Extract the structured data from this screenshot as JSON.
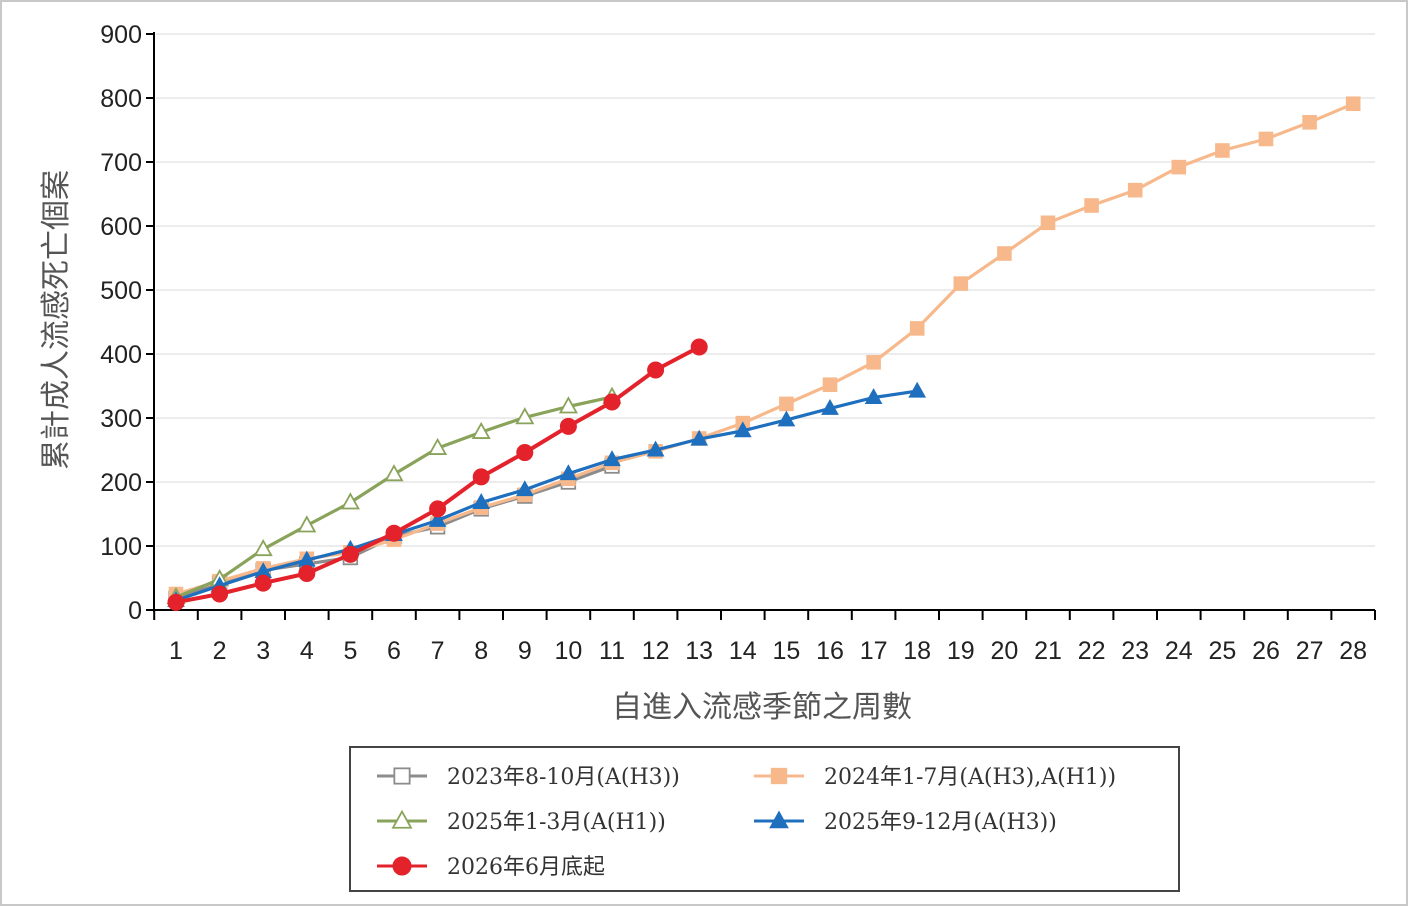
{
  "chart_data": {
    "type": "line",
    "xlabel": "自進入流感季節之周數",
    "ylabel": "累計成人流感死亡個案",
    "xlim": [
      1,
      28
    ],
    "ylim": [
      0,
      900
    ],
    "yticks": [
      "0",
      "100",
      "200",
      "300",
      "400",
      "500",
      "600",
      "700",
      "800",
      "900"
    ],
    "xticks": [
      "1",
      "2",
      "3",
      "4",
      "5",
      "6",
      "7",
      "8",
      "9",
      "10",
      "11",
      "12",
      "13",
      "14",
      "15",
      "16",
      "17",
      "18",
      "19",
      "20",
      "21",
      "22",
      "23",
      "24",
      "25",
      "26",
      "27",
      "28"
    ],
    "grid": true,
    "legend_position": "bottom",
    "series": [
      {
        "name": "2023年8-10月(A(H3))",
        "color": "#8c8c8c",
        "marker": "hollow-square",
        "x": [
          1,
          2,
          3,
          4,
          5,
          6,
          7,
          8,
          9,
          10,
          11
        ],
        "y": [
          18,
          42,
          62,
          72,
          82,
          115,
          130,
          158,
          178,
          200,
          225
        ]
      },
      {
        "name": "2024年1-7月(A(H3),A(H1))",
        "color": "#f7b98c",
        "marker": "square",
        "x": [
          1,
          2,
          3,
          4,
          5,
          6,
          7,
          8,
          9,
          10,
          11,
          12,
          13,
          14,
          15,
          16,
          17,
          18,
          19,
          20,
          21,
          22,
          23,
          24,
          25,
          26,
          27,
          28
        ],
        "y": [
          25,
          45,
          65,
          80,
          90,
          110,
          135,
          160,
          180,
          205,
          230,
          248,
          268,
          292,
          322,
          352,
          387,
          440,
          510,
          557,
          605,
          632,
          656,
          692,
          718,
          736,
          762,
          791
        ]
      },
      {
        "name": "2025年1-3月(A(H1))",
        "color": "#8aa35a",
        "marker": "hollow-triangle",
        "x": [
          1,
          2,
          3,
          4,
          5,
          6,
          7,
          8,
          9,
          10,
          11
        ],
        "y": [
          20,
          48,
          95,
          132,
          168,
          212,
          253,
          278,
          301,
          318,
          333
        ]
      },
      {
        "name": "2025年9-12月(A(H3))",
        "color": "#1f6fbf",
        "marker": "triangle",
        "x": [
          1,
          2,
          3,
          4,
          5,
          6,
          7,
          8,
          9,
          10,
          11,
          12,
          13,
          14,
          15,
          16,
          17,
          18
        ],
        "y": [
          15,
          38,
          60,
          78,
          95,
          118,
          140,
          168,
          188,
          213,
          235,
          250,
          267,
          280,
          297,
          315,
          332,
          342
        ]
      },
      {
        "name": "2026年6月底起",
        "color": "#e3222b",
        "marker": "circle",
        "x": [
          1,
          2,
          3,
          4,
          5,
          6,
          7,
          8,
          9,
          10,
          11,
          12,
          13
        ],
        "y": [
          12,
          25,
          42,
          57,
          87,
          120,
          158,
          208,
          246,
          287,
          325,
          375,
          411
        ]
      }
    ]
  }
}
